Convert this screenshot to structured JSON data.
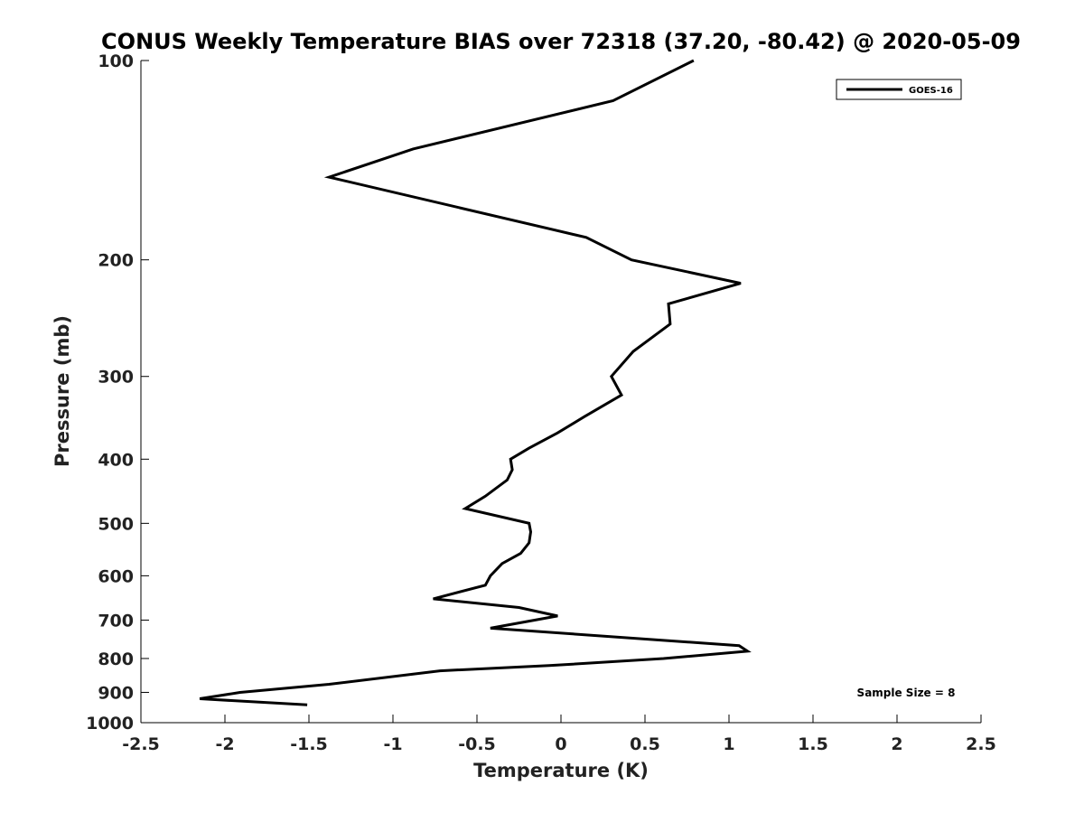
{
  "chart_data": {
    "type": "line",
    "title": "CONUS Weekly Temperature BIAS over 72318 (37.20, -80.42) @ 2020-05-09",
    "xlabel": "Temperature (K)",
    "ylabel": "Pressure (mb)",
    "xlim": [
      -2.5,
      2.5
    ],
    "ylim": [
      1000,
      100
    ],
    "yscale": "log",
    "x_ticks": [
      -2.5,
      -2,
      -1.5,
      -1,
      -0.5,
      0,
      0.5,
      1,
      1.5,
      2,
      2.5
    ],
    "x_tick_labels": [
      "-2.5",
      "-2",
      "-1.5",
      "-1",
      "-0.5",
      "0",
      "0.5",
      "1",
      "1.5",
      "2",
      "2.5"
    ],
    "y_ticks": [
      100,
      200,
      300,
      400,
      500,
      600,
      700,
      800,
      900,
      1000
    ],
    "y_tick_labels": [
      "100",
      "200",
      "300",
      "400",
      "500",
      "600",
      "700",
      "800",
      "900",
      "1000"
    ],
    "grid": false,
    "legend_position": "top-right",
    "annotation": "Sample Size = 8",
    "series": [
      {
        "name": "GOES-16",
        "color": "#000000",
        "x": [
          0.79,
          0.31,
          -0.88,
          -1.38,
          0.15,
          0.42,
          1.07,
          0.64,
          0.65,
          0.43,
          0.3,
          0.36,
          0.14,
          -0.02,
          -0.19,
          -0.3,
          -0.29,
          -0.32,
          -0.45,
          -0.57,
          -0.19,
          -0.18,
          -0.19,
          -0.24,
          -0.35,
          -0.42,
          -0.45,
          -0.76,
          -0.25,
          -0.02,
          -0.42,
          1.06,
          1.11,
          0.61,
          -0.07,
          -0.72,
          -1.38,
          -1.91,
          -2.15,
          -1.51
        ],
        "y": [
          100,
          115,
          136,
          150,
          185,
          200,
          217,
          233,
          250,
          275,
          300,
          320,
          345,
          365,
          385,
          400,
          415,
          430,
          455,
          475,
          500,
          515,
          535,
          555,
          575,
          600,
          620,
          650,
          670,
          690,
          720,
          765,
          780,
          800,
          820,
          835,
          875,
          900,
          920,
          940
        ]
      }
    ]
  }
}
